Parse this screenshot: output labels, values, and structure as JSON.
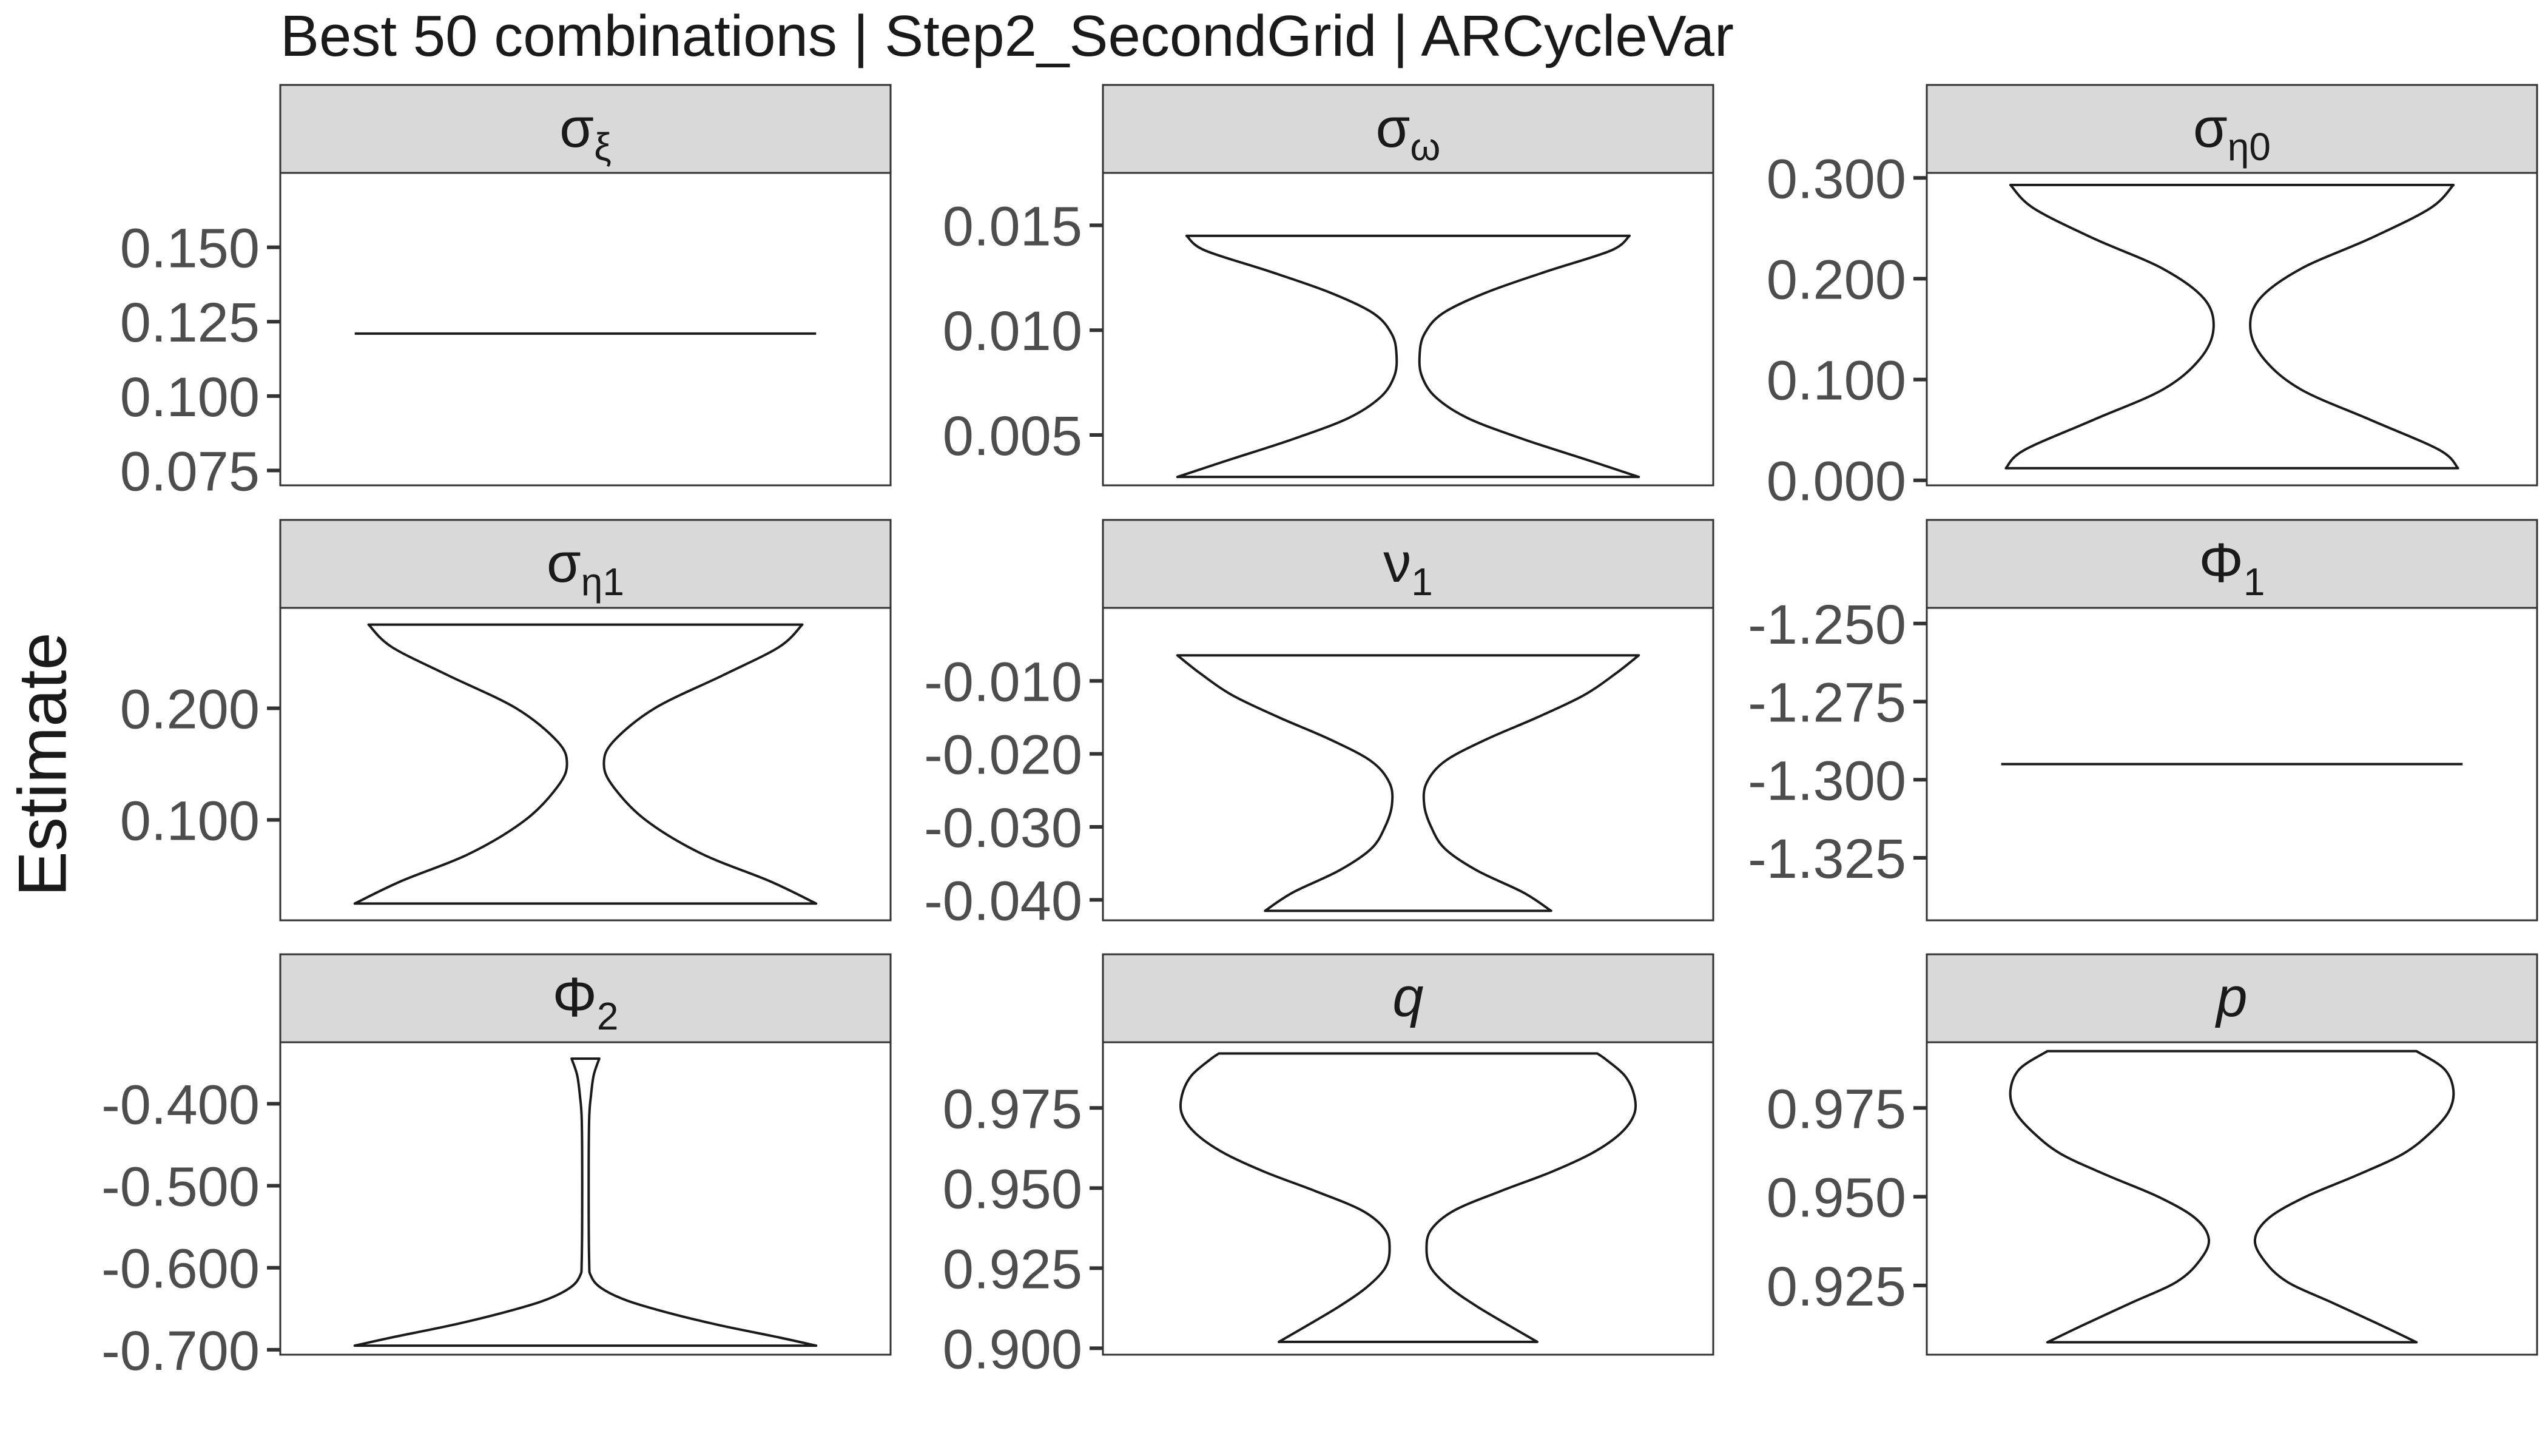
{
  "title": "Best 50 combinations | Step2_SecondGrid | ARCycleVar",
  "ylabel": "Estimate",
  "colors": {
    "strip_fill": "#d9d9d9",
    "panel_border": "#333333",
    "violin_stroke": "#1a1a1a",
    "tick_text": "#4d4d4d",
    "background": "#ffffff"
  },
  "chart_data": {
    "type": "violin",
    "title": "Best 50 combinations | Step2_SecondGrid | ARCycleVar",
    "ylabel": "Estimate",
    "xlabel": "",
    "grid": false,
    "legend": "none",
    "panels": [
      {
        "label": {
          "base": "σ",
          "sub": "ξ",
          "italic": false
        },
        "ylim": [
          0.07,
          0.175
        ],
        "yticks": [
          0.075,
          0.1,
          0.125,
          0.15
        ],
        "ytick_labels": [
          "0.075",
          "0.100",
          "0.125",
          "0.150"
        ],
        "violin": {
          "min": 0.121,
          "max": 0.121,
          "profile": [
            [
              0.121,
              0.5
            ]
          ]
        }
      },
      {
        "label": {
          "base": "σ",
          "sub": "ω",
          "italic": false
        },
        "ylim": [
          0.0026,
          0.0175
        ],
        "yticks": [
          0.005,
          0.01,
          0.015
        ],
        "ytick_labels": [
          "0.005",
          "0.010",
          "0.015"
        ],
        "violin": {
          "min": 0.003,
          "max": 0.0145,
          "profile": [
            [
              0.003,
              0.5
            ],
            [
              0.0038,
              0.39
            ],
            [
              0.0048,
              0.25
            ],
            [
              0.0058,
              0.13
            ],
            [
              0.0068,
              0.06
            ],
            [
              0.0078,
              0.03
            ],
            [
              0.0088,
              0.025
            ],
            [
              0.0098,
              0.035
            ],
            [
              0.0108,
              0.075
            ],
            [
              0.0118,
              0.17
            ],
            [
              0.0128,
              0.3
            ],
            [
              0.0138,
              0.44
            ],
            [
              0.0145,
              0.48
            ]
          ]
        }
      },
      {
        "label": {
          "base": "σ",
          "sub": "η0",
          "italic": false
        },
        "ylim": [
          -0.005,
          0.305
        ],
        "yticks": [
          0.0,
          0.1,
          0.2,
          0.3
        ],
        "ytick_labels": [
          "0.000",
          "0.100",
          "0.200",
          "0.300"
        ],
        "violin": {
          "min": 0.012,
          "max": 0.293,
          "profile": [
            [
              0.012,
              0.49
            ],
            [
              0.03,
              0.45
            ],
            [
              0.06,
              0.3
            ],
            [
              0.09,
              0.15
            ],
            [
              0.12,
              0.07
            ],
            [
              0.15,
              0.04
            ],
            [
              0.18,
              0.06
            ],
            [
              0.21,
              0.15
            ],
            [
              0.24,
              0.3
            ],
            [
              0.27,
              0.43
            ],
            [
              0.293,
              0.48
            ]
          ]
        }
      },
      {
        "label": {
          "base": "σ",
          "sub": "η1",
          "italic": false
        },
        "ylim": [
          0.01,
          0.29
        ],
        "yticks": [
          0.1,
          0.2
        ],
        "ytick_labels": [
          "0.100",
          "0.200"
        ],
        "violin": {
          "min": 0.025,
          "max": 0.275,
          "profile": [
            [
              0.025,
              0.5
            ],
            [
              0.045,
              0.4
            ],
            [
              0.07,
              0.25
            ],
            [
              0.1,
              0.13
            ],
            [
              0.13,
              0.06
            ],
            [
              0.15,
              0.04
            ],
            [
              0.17,
              0.06
            ],
            [
              0.2,
              0.15
            ],
            [
              0.23,
              0.3
            ],
            [
              0.255,
              0.42
            ],
            [
              0.275,
              0.47
            ]
          ]
        }
      },
      {
        "label": {
          "base": "ν",
          "sub": "1",
          "italic": false
        },
        "ylim": [
          -0.0428,
          0.0
        ],
        "yticks": [
          -0.04,
          -0.03,
          -0.02,
          -0.01
        ],
        "ytick_labels": [
          "-0.040",
          "-0.030",
          "-0.020",
          "-0.010"
        ],
        "violin": {
          "min": -0.0415,
          "max": -0.0065,
          "profile": [
            [
              -0.0415,
              0.31
            ],
            [
              -0.039,
              0.25
            ],
            [
              -0.036,
              0.15
            ],
            [
              -0.033,
              0.08
            ],
            [
              -0.03,
              0.05
            ],
            [
              -0.027,
              0.035
            ],
            [
              -0.024,
              0.04
            ],
            [
              -0.021,
              0.08
            ],
            [
              -0.018,
              0.17
            ],
            [
              -0.015,
              0.28
            ],
            [
              -0.012,
              0.38
            ],
            [
              -0.009,
              0.45
            ],
            [
              -0.0065,
              0.5
            ]
          ]
        }
      },
      {
        "label": {
          "base": "Φ",
          "sub": "1",
          "italic": false
        },
        "ylim": [
          -1.345,
          -1.245
        ],
        "yticks": [
          -1.325,
          -1.3,
          -1.275,
          -1.25
        ],
        "ytick_labels": [
          "-1.325",
          "-1.300",
          "-1.275",
          "-1.250"
        ],
        "violin": {
          "min": -1.295,
          "max": -1.295,
          "profile": [
            [
              -1.295,
              0.5
            ]
          ]
        }
      },
      {
        "label": {
          "base": "Φ",
          "sub": "2",
          "italic": false
        },
        "ylim": [
          -0.706,
          -0.325
        ],
        "yticks": [
          -0.7,
          -0.6,
          -0.5,
          -0.4
        ],
        "ytick_labels": [
          "-0.700",
          "-0.600",
          "-0.500",
          "-0.400"
        ],
        "violin": {
          "min": -0.695,
          "max": -0.345,
          "profile": [
            [
              -0.695,
              0.5
            ],
            [
              -0.685,
              0.42
            ],
            [
              -0.67,
              0.29
            ],
            [
              -0.655,
              0.18
            ],
            [
              -0.64,
              0.09
            ],
            [
              -0.625,
              0.035
            ],
            [
              -0.61,
              0.012
            ],
            [
              -0.59,
              0.008
            ],
            [
              -0.5,
              0.007
            ],
            [
              -0.42,
              0.008
            ],
            [
              -0.39,
              0.012
            ],
            [
              -0.365,
              0.018
            ],
            [
              -0.345,
              0.03
            ]
          ]
        }
      },
      {
        "label": {
          "base": "q",
          "sub": "",
          "italic": true
        },
        "ylim": [
          0.898,
          0.9955
        ],
        "yticks": [
          0.9,
          0.925,
          0.95,
          0.975
        ],
        "ytick_labels": [
          "0.900",
          "0.925",
          "0.950",
          "0.975"
        ],
        "violin": {
          "min": 0.902,
          "max": 0.992,
          "profile": [
            [
              0.902,
              0.28
            ],
            [
              0.907,
              0.22
            ],
            [
              0.913,
              0.15
            ],
            [
              0.919,
              0.09
            ],
            [
              0.925,
              0.05
            ],
            [
              0.931,
              0.04
            ],
            [
              0.937,
              0.05
            ],
            [
              0.943,
              0.1
            ],
            [
              0.949,
              0.2
            ],
            [
              0.955,
              0.31
            ],
            [
              0.961,
              0.4
            ],
            [
              0.967,
              0.46
            ],
            [
              0.973,
              0.49
            ],
            [
              0.979,
              0.49
            ],
            [
              0.985,
              0.47
            ],
            [
              0.99,
              0.43
            ],
            [
              0.992,
              0.41
            ]
          ]
        }
      },
      {
        "label": {
          "base": "p",
          "sub": "",
          "italic": true
        },
        "ylim": [
          0.9055,
          0.9935
        ],
        "yticks": [
          0.925,
          0.95,
          0.975
        ],
        "ytick_labels": [
          "0.925",
          "0.950",
          "0.975"
        ],
        "violin": {
          "min": 0.909,
          "max": 0.991,
          "profile": [
            [
              0.909,
              0.4
            ],
            [
              0.914,
              0.32
            ],
            [
              0.92,
              0.22
            ],
            [
              0.926,
              0.12
            ],
            [
              0.932,
              0.07
            ],
            [
              0.938,
              0.05
            ],
            [
              0.944,
              0.08
            ],
            [
              0.95,
              0.16
            ],
            [
              0.956,
              0.27
            ],
            [
              0.962,
              0.37
            ],
            [
              0.968,
              0.43
            ],
            [
              0.974,
              0.47
            ],
            [
              0.98,
              0.48
            ],
            [
              0.986,
              0.46
            ],
            [
              0.991,
              0.4
            ]
          ]
        }
      }
    ]
  }
}
